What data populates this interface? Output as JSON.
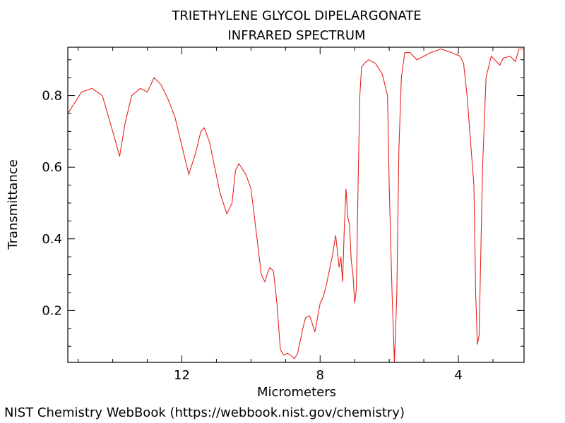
{
  "chart_data": {
    "type": "line",
    "title": "TRIETHYLENE GLYCOL DIPELARGONATE",
    "subtitle": "INFRARED SPECTRUM",
    "xlabel": "Micrometers",
    "ylabel": "Transmittance",
    "xlim": [
      15.3,
      2.1
    ],
    "ylim": [
      0.055,
      0.935
    ],
    "x_reversed": true,
    "x_ticks": [
      12,
      8,
      4
    ],
    "y_ticks": [
      0.2,
      0.4,
      0.6,
      0.8
    ],
    "grid": false,
    "line_color": "#e8231e",
    "series": [
      {
        "x": [
          15.3,
          15.1,
          14.9,
          14.6,
          14.3,
          14.0,
          13.8,
          13.65,
          13.45,
          13.2,
          13.0,
          12.8,
          12.6,
          12.4,
          12.2,
          12.0,
          11.8,
          11.6,
          11.45,
          11.35,
          11.2,
          11.05,
          10.9,
          10.7,
          10.55,
          10.45,
          10.35,
          10.15,
          10.0,
          9.85,
          9.7,
          9.6,
          9.5,
          9.45,
          9.35,
          9.25,
          9.15,
          9.05,
          8.95,
          8.85,
          8.75,
          8.65,
          8.5,
          8.42,
          8.3,
          8.15,
          8.0,
          7.9,
          7.8,
          7.65,
          7.55,
          7.45,
          7.4,
          7.35,
          7.3,
          7.25,
          7.2,
          7.15,
          7.1,
          7.05,
          7.0,
          6.95,
          6.9,
          6.85,
          6.8,
          6.72,
          6.6,
          6.4,
          6.2,
          6.05,
          6.0,
          5.92,
          5.85,
          5.78,
          5.72,
          5.65,
          5.55,
          5.4,
          5.2,
          5.0,
          4.8,
          4.5,
          4.2,
          3.95,
          3.85,
          3.75,
          3.55,
          3.5,
          3.45,
          3.4,
          3.3,
          3.2,
          3.05,
          2.95,
          2.8,
          2.7,
          2.5,
          2.35,
          2.25,
          2.1
        ],
        "y": [
          0.75,
          0.78,
          0.81,
          0.82,
          0.8,
          0.7,
          0.63,
          0.72,
          0.8,
          0.82,
          0.81,
          0.85,
          0.83,
          0.79,
          0.74,
          0.66,
          0.58,
          0.64,
          0.7,
          0.71,
          0.67,
          0.6,
          0.53,
          0.47,
          0.5,
          0.59,
          0.61,
          0.58,
          0.54,
          0.42,
          0.3,
          0.28,
          0.31,
          0.32,
          0.31,
          0.22,
          0.09,
          0.075,
          0.08,
          0.075,
          0.065,
          0.08,
          0.15,
          0.18,
          0.185,
          0.14,
          0.22,
          0.24,
          0.28,
          0.35,
          0.41,
          0.32,
          0.35,
          0.28,
          0.43,
          0.54,
          0.46,
          0.44,
          0.34,
          0.3,
          0.22,
          0.26,
          0.56,
          0.8,
          0.88,
          0.89,
          0.9,
          0.89,
          0.86,
          0.8,
          0.55,
          0.25,
          0.055,
          0.25,
          0.65,
          0.85,
          0.92,
          0.92,
          0.9,
          0.91,
          0.92,
          0.93,
          0.92,
          0.91,
          0.89,
          0.8,
          0.55,
          0.25,
          0.105,
          0.13,
          0.6,
          0.85,
          0.91,
          0.9,
          0.885,
          0.905,
          0.91,
          0.895,
          0.93,
          0.93
        ]
      }
    ]
  },
  "footer": {
    "credit": "NIST Chemistry WebBook (https://webbook.nist.gov/chemistry)"
  }
}
